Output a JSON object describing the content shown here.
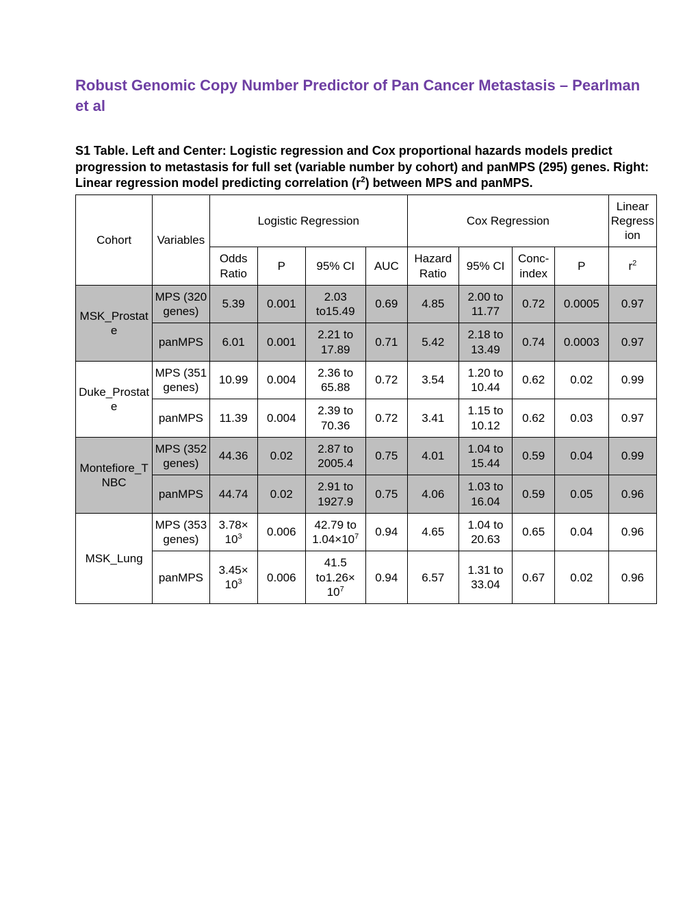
{
  "title": "Robust Genomic Copy Number Predictor of Pan Cancer Metastasis – Pearlman et al",
  "caption_a": "S1 Table. Left and Center: Logistic regression and Cox proportional hazards models predict progression to metastasis for full set (variable number by cohort) and panMPS (295) genes. Right: Linear regression model predicting correlation (r",
  "caption_b": ") between MPS and panMPS.",
  "headers": {
    "cohort": "Cohort",
    "variables": "Variables",
    "logistic": "Logistic Regression",
    "cox": "Cox Regression",
    "linreg": "Linear Regression",
    "odds": "Odds Ratio",
    "p": "P",
    "ci": "95% CI",
    "auc": "AUC",
    "hazard": "Hazard Ratio",
    "cindex": "Conc-index",
    "r2": "r"
  },
  "rows": [
    {
      "cohort": "MSK_Prostate",
      "shade": true,
      "sub": [
        {
          "var": "MPS (320 genes)",
          "or": "5.39",
          "p1": "0.001",
          "ci1": "2.03 to15.49",
          "auc": "0.69",
          "hr": "4.85",
          "ci2": "2.00 to 11.77",
          "cidx": "0.72",
          "p2": "0.0005",
          "r2": "0.97"
        },
        {
          "var": "panMPS",
          "or": "6.01",
          "p1": "0.001",
          "ci1": "2.21 to 17.89",
          "auc": "0.71",
          "hr": "5.42",
          "ci2": "2.18 to 13.49",
          "cidx": "0.74",
          "p2": "0.0003",
          "r2": "0.97"
        }
      ]
    },
    {
      "cohort": "Duke_Prostate",
      "shade": false,
      "sub": [
        {
          "var": "MPS (351 genes)",
          "or": "10.99",
          "p1": "0.004",
          "ci1": "2.36 to 65.88",
          "auc": "0.72",
          "hr": "3.54",
          "ci2": "1.20 to 10.44",
          "cidx": "0.62",
          "p2": "0.02",
          "r2": "0.99"
        },
        {
          "var": "panMPS",
          "or": "11.39",
          "p1": "0.004",
          "ci1": "2.39 to 70.36",
          "auc": "0.72",
          "hr": "3.41",
          "ci2": "1.15 to 10.12",
          "cidx": "0.62",
          "p2": "0.03",
          "r2": "0.97"
        }
      ]
    },
    {
      "cohort": "Montefiore_TNBC",
      "shade": true,
      "sub": [
        {
          "var": "MPS (352 genes)",
          "or": "44.36",
          "p1": "0.02",
          "ci1": "2.87 to 2005.4",
          "auc": "0.75",
          "hr": "4.01",
          "ci2": "1.04 to 15.44",
          "cidx": "0.59",
          "p2": "0.04",
          "r2": "0.99"
        },
        {
          "var": "panMPS",
          "or": "44.74",
          "p1": "0.02",
          "ci1": "2.91 to 1927.9",
          "auc": "0.75",
          "hr": "4.06",
          "ci2": "1.03 to 16.04",
          "cidx": "0.59",
          "p2": "0.05",
          "r2": "0.96"
        }
      ]
    },
    {
      "cohort": "MSK_Lung",
      "shade": false,
      "sub": [
        {
          "var": "MPS (353 genes)",
          "or_html": "3.78× 10<sup>3</sup>",
          "p1": "0.006",
          "ci1_html": "42.79 to 1.04×10<sup>7</sup>",
          "auc": "0.94",
          "hr": "4.65",
          "ci2": "1.04 to 20.63",
          "cidx": "0.65",
          "p2": "0.04",
          "r2": "0.96"
        },
        {
          "var": "panMPS",
          "or_html": "3.45× 10<sup>3</sup>",
          "p1": "0.006",
          "ci1_html": "41.5 to1.26× 10<sup>7</sup>",
          "auc": "0.94",
          "hr": "6.57",
          "ci2": "1.31 to 33.04",
          "cidx": "0.67",
          "p2": "0.02",
          "r2": "0.96"
        }
      ]
    }
  ],
  "style": {
    "title_color": "#6e3fa3",
    "shade_color": "#bfbfbf",
    "border_color": "#000000",
    "bg_color": "#ffffff",
    "font_family": "Arial",
    "title_fontsize": 22,
    "caption_fontsize": 18,
    "cell_fontsize": 17
  }
}
